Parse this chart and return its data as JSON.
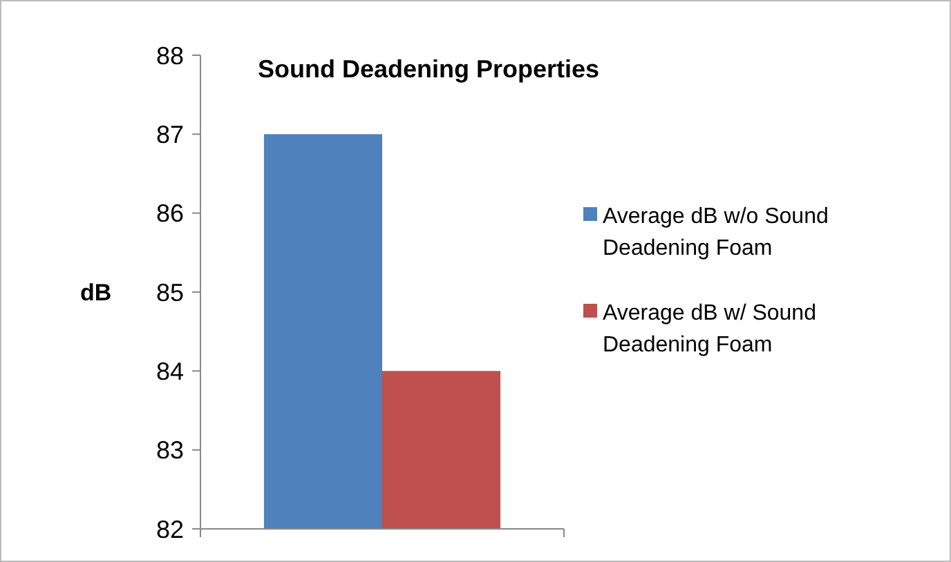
{
  "chart_data": {
    "type": "bar",
    "title": "Sound Deadening Properties",
    "ylabel": "dB",
    "categories": [
      null
    ],
    "series": [
      {
        "name": "Average dB w/o Sound Deadening Foam",
        "color": "#4f81bd",
        "values": [
          87
        ]
      },
      {
        "name": "Average dB w/ Sound Deadening Foam",
        "color": "#c0504d",
        "values": [
          84
        ]
      }
    ],
    "ylim": [
      82,
      88
    ],
    "yticks": [
      82,
      83,
      84,
      85,
      86,
      87,
      88
    ],
    "grid": false,
    "legend": "right"
  }
}
